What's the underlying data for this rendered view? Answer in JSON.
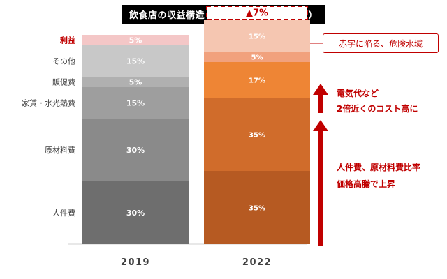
{
  "title": "飲食店の収益構造（中小企業～個店の場合）",
  "chart_data": {
    "type": "bar",
    "stacked": true,
    "categories": [
      "2019",
      "2022"
    ],
    "segments_bottom_to_top": [
      "人件費",
      "原材料費",
      "家賃・水光熱費",
      "販促費",
      "その他",
      "利益"
    ],
    "series": [
      {
        "name": "人件費",
        "values": [
          30,
          35
        ],
        "labels": [
          "30%",
          "35%"
        ]
      },
      {
        "name": "原材料費",
        "values": [
          30,
          35
        ],
        "labels": [
          "30%",
          "35%"
        ]
      },
      {
        "name": "家賃・水光熱費",
        "values": [
          15,
          17
        ],
        "labels": [
          "15%",
          "17%"
        ]
      },
      {
        "name": "販促費",
        "values": [
          5,
          5
        ],
        "labels": [
          "5%",
          "5%"
        ]
      },
      {
        "name": "その他",
        "values": [
          15,
          15
        ],
        "labels": [
          "15%",
          "15%"
        ]
      },
      {
        "name": "利益",
        "values": [
          5,
          -7
        ],
        "labels": [
          "5%",
          "▲7%"
        ]
      }
    ],
    "colors_2019": [
      "#6e6e6e",
      "#8a8a8a",
      "#9e9e9e",
      "#b0b0b0",
      "#c8c8c8",
      "#f4c7c7"
    ],
    "colors_2022": [
      "#b65a22",
      "#d06c2b",
      "#ee8535",
      "#f1a17d",
      "#f5c6b1",
      "#ffffff"
    ],
    "annotations": [
      {
        "text": "赤字に陥る、危険水域"
      },
      {
        "text": "電気代など"
      },
      {
        "text": "2倍近くのコスト高に"
      },
      {
        "text": "人件費、原材料費比率"
      },
      {
        "text": "価格高騰で上昇"
      }
    ]
  }
}
